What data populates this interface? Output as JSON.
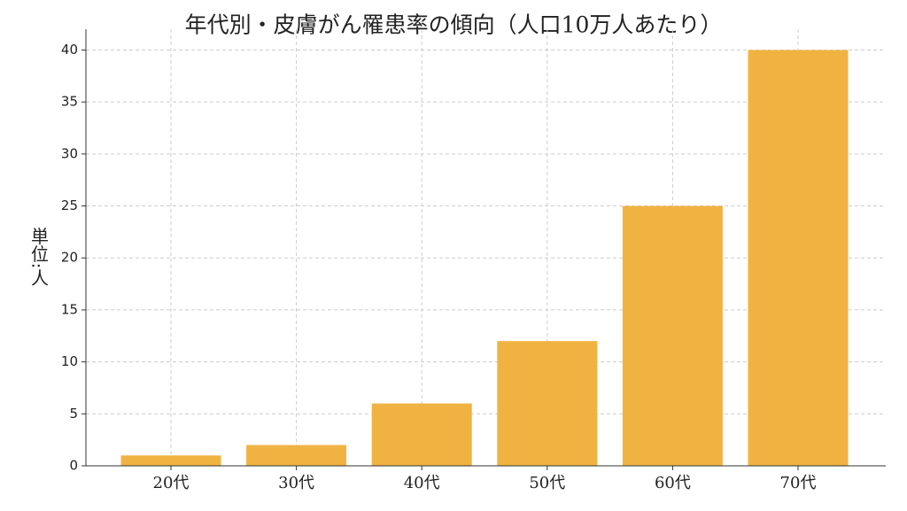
{
  "chart_data": {
    "type": "bar",
    "title": "年代別・皮膚がん罹患率の傾向（人口10万人あたり）",
    "y_label": "単位:人",
    "categories": [
      "20代",
      "30代",
      "40代",
      "50代",
      "60代",
      "70代"
    ],
    "values": [
      1,
      2,
      6,
      12,
      25,
      40
    ],
    "color": "#f0b342",
    "ylim": [
      0,
      42
    ],
    "yticks": [
      0,
      5,
      10,
      15,
      20,
      25,
      30,
      35,
      40
    ],
    "grid": true
  }
}
